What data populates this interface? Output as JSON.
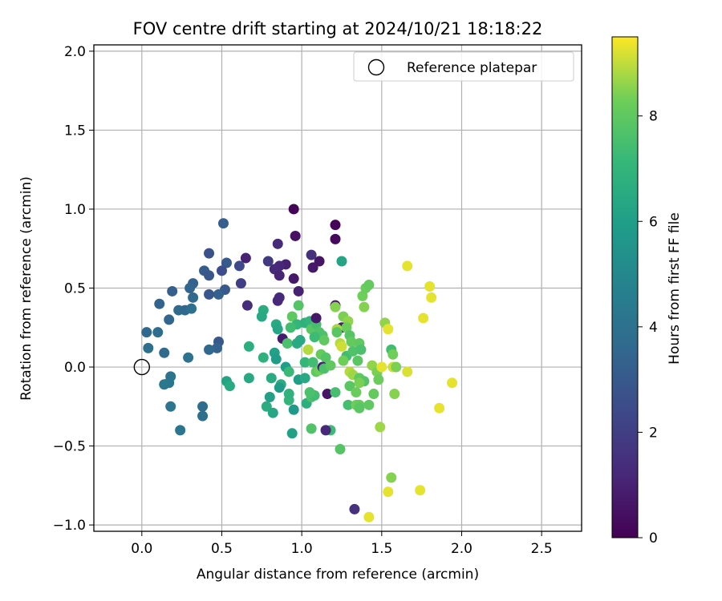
{
  "chart_data": {
    "type": "scatter",
    "title": "FOV centre drift starting at 2024/10/21 18:18:22",
    "xlabel": "Angular distance from reference (arcmin)",
    "ylabel": "Rotation from reference (arcmin)",
    "xlim": [
      -0.3,
      2.75
    ],
    "ylim": [
      -1.04,
      2.04
    ],
    "x_ticks": [
      0.0,
      0.5,
      1.0,
      1.5,
      2.0,
      2.5
    ],
    "x_tick_labels": [
      "0.0",
      "0.5",
      "1.0",
      "1.5",
      "2.0",
      "2.5"
    ],
    "y_ticks": [
      -1.0,
      -0.5,
      0.0,
      0.5,
      1.0,
      1.5,
      2.0
    ],
    "y_tick_labels": [
      "−1.0",
      "−0.5",
      "0.0",
      "0.5",
      "1.0",
      "1.5",
      "2.0"
    ],
    "grid": true,
    "legend": {
      "placement": "top-right",
      "entries": [
        "Reference platepar"
      ]
    },
    "reference_point": {
      "x": 0.0,
      "y": 0.0
    },
    "colorbar": {
      "label": "Hours from first FF file",
      "min": 0,
      "max": 9.5,
      "ticks": [
        0,
        2,
        4,
        6,
        8
      ],
      "tick_labels": [
        "0",
        "2",
        "4",
        "6",
        "8"
      ],
      "colormap": "viridis"
    },
    "points": [
      {
        "x": 0.95,
        "y": 1.0,
        "h": 0.1
      },
      {
        "x": 1.21,
        "y": 0.9,
        "h": 0.1
      },
      {
        "x": 1.21,
        "y": 0.81,
        "h": 0.2
      },
      {
        "x": 0.96,
        "y": 0.83,
        "h": 0.5
      },
      {
        "x": 1.11,
        "y": 0.67,
        "h": 0.6
      },
      {
        "x": 1.07,
        "y": 0.63,
        "h": 0.7
      },
      {
        "x": 0.9,
        "y": 0.65,
        "h": 1.0
      },
      {
        "x": 0.86,
        "y": 0.64,
        "h": 1.2
      },
      {
        "x": 0.83,
        "y": 0.62,
        "h": 1.3
      },
      {
        "x": 0.86,
        "y": 0.58,
        "h": 1.1
      },
      {
        "x": 0.95,
        "y": 0.56,
        "h": 0.7
      },
      {
        "x": 0.98,
        "y": 0.48,
        "h": 1.0
      },
      {
        "x": 0.65,
        "y": 0.69,
        "h": 1.0
      },
      {
        "x": 0.85,
        "y": 0.78,
        "h": 1.3
      },
      {
        "x": 0.79,
        "y": 0.67,
        "h": 1.8
      },
      {
        "x": 1.06,
        "y": 0.71,
        "h": 1.5
      },
      {
        "x": 0.86,
        "y": 0.44,
        "h": 1.3
      },
      {
        "x": 0.85,
        "y": 0.42,
        "h": 1.2
      },
      {
        "x": 0.66,
        "y": 0.39,
        "h": 1.4
      },
      {
        "x": 0.62,
        "y": 0.53,
        "h": 2.0
      },
      {
        "x": 0.61,
        "y": 0.64,
        "h": 2.4
      },
      {
        "x": 0.53,
        "y": 0.66,
        "h": 3.0
      },
      {
        "x": 0.5,
        "y": 0.61,
        "h": 2.5
      },
      {
        "x": 0.42,
        "y": 0.72,
        "h": 2.7
      },
      {
        "x": 0.39,
        "y": 0.61,
        "h": 3.1
      },
      {
        "x": 0.42,
        "y": 0.58,
        "h": 2.9
      },
      {
        "x": 0.51,
        "y": 0.91,
        "h": 3.2
      },
      {
        "x": 0.52,
        "y": 0.49,
        "h": 3.0
      },
      {
        "x": 0.48,
        "y": 0.46,
        "h": 3.3
      },
      {
        "x": 0.42,
        "y": 0.46,
        "h": 2.9
      },
      {
        "x": 0.32,
        "y": 0.53,
        "h": 3.3
      },
      {
        "x": 0.3,
        "y": 0.5,
        "h": 3.5
      },
      {
        "x": 0.32,
        "y": 0.44,
        "h": 3.7
      },
      {
        "x": 0.19,
        "y": 0.48,
        "h": 3.2
      },
      {
        "x": 0.11,
        "y": 0.4,
        "h": 3.4
      },
      {
        "x": 0.17,
        "y": 0.3,
        "h": 3.5
      },
      {
        "x": 0.23,
        "y": 0.36,
        "h": 3.7
      },
      {
        "x": 0.27,
        "y": 0.36,
        "h": 3.6
      },
      {
        "x": 0.31,
        "y": 0.37,
        "h": 3.9
      },
      {
        "x": 0.03,
        "y": 0.22,
        "h": 3.6
      },
      {
        "x": 0.1,
        "y": 0.22,
        "h": 3.8
      },
      {
        "x": 0.04,
        "y": 0.12,
        "h": 3.9
      },
      {
        "x": 0.48,
        "y": 0.16,
        "h": 2.9
      },
      {
        "x": 0.47,
        "y": 0.12,
        "h": 3.3
      },
      {
        "x": 0.42,
        "y": 0.11,
        "h": 3.6
      },
      {
        "x": 0.14,
        "y": 0.09,
        "h": 3.7
      },
      {
        "x": 0.29,
        "y": 0.06,
        "h": 4.0
      },
      {
        "x": 0.18,
        "y": -0.06,
        "h": 4.1
      },
      {
        "x": 0.17,
        "y": -0.1,
        "h": 4.2
      },
      {
        "x": 0.14,
        "y": -0.11,
        "h": 4.3
      },
      {
        "x": 0.18,
        "y": -0.25,
        "h": 4.2
      },
      {
        "x": 0.38,
        "y": -0.25,
        "h": 3.8
      },
      {
        "x": 0.38,
        "y": -0.31,
        "h": 3.9
      },
      {
        "x": 0.24,
        "y": -0.4,
        "h": 4.2
      },
      {
        "x": 1.25,
        "y": 0.67,
        "h": 6.2
      },
      {
        "x": 0.76,
        "y": 0.36,
        "h": 6.6
      },
      {
        "x": 0.75,
        "y": 0.32,
        "h": 6.4
      },
      {
        "x": 0.84,
        "y": 0.27,
        "h": 6.5
      },
      {
        "x": 0.85,
        "y": 0.24,
        "h": 6.3
      },
      {
        "x": 0.67,
        "y": 0.13,
        "h": 6.7
      },
      {
        "x": 0.83,
        "y": 0.09,
        "h": 6.1
      },
      {
        "x": 0.76,
        "y": 0.06,
        "h": 6.8
      },
      {
        "x": 0.84,
        "y": 0.05,
        "h": 5.9
      },
      {
        "x": 0.9,
        "y": 0.0,
        "h": 6.0
      },
      {
        "x": 0.92,
        "y": -0.03,
        "h": 7.2
      },
      {
        "x": 0.53,
        "y": -0.09,
        "h": 6.2
      },
      {
        "x": 0.55,
        "y": -0.12,
        "h": 6.5
      },
      {
        "x": 0.67,
        "y": -0.07,
        "h": 6.4
      },
      {
        "x": 0.81,
        "y": -0.07,
        "h": 6.5
      },
      {
        "x": 0.87,
        "y": -0.11,
        "h": 6.6
      },
      {
        "x": 0.86,
        "y": -0.13,
        "h": 5.8
      },
      {
        "x": 0.8,
        "y": -0.19,
        "h": 6.1
      },
      {
        "x": 0.92,
        "y": -0.21,
        "h": 7.0
      },
      {
        "x": 0.92,
        "y": -0.17,
        "h": 6.9
      },
      {
        "x": 0.78,
        "y": -0.25,
        "h": 6.6
      },
      {
        "x": 0.82,
        "y": -0.29,
        "h": 6.3
      },
      {
        "x": 0.95,
        "y": -0.27,
        "h": 5.8
      },
      {
        "x": 0.94,
        "y": -0.42,
        "h": 6.1
      },
      {
        "x": 0.98,
        "y": -0.08,
        "h": 6.0
      },
      {
        "x": 1.02,
        "y": -0.07,
        "h": 6.4
      },
      {
        "x": 1.03,
        "y": -0.23,
        "h": 6.7
      },
      {
        "x": 1.06,
        "y": -0.19,
        "h": 7.6
      },
      {
        "x": 1.08,
        "y": -0.18,
        "h": 7.4
      },
      {
        "x": 1.06,
        "y": -0.39,
        "h": 7.7
      },
      {
        "x": 1.18,
        "y": -0.4,
        "h": 7.3
      },
      {
        "x": 1.24,
        "y": -0.52,
        "h": 7.8
      },
      {
        "x": 1.15,
        "y": -0.4,
        "h": 1.2
      },
      {
        "x": 1.16,
        "y": -0.17,
        "h": 0.6
      },
      {
        "x": 1.21,
        "y": -0.16,
        "h": 7.5
      },
      {
        "x": 1.09,
        "y": -0.03,
        "h": 8.0
      },
      {
        "x": 1.11,
        "y": -0.02,
        "h": 8.3
      },
      {
        "x": 1.05,
        "y": -0.16,
        "h": 7.6
      },
      {
        "x": 0.98,
        "y": 0.39,
        "h": 7.8
      },
      {
        "x": 0.94,
        "y": 0.32,
        "h": 8.0
      },
      {
        "x": 0.97,
        "y": 0.27,
        "h": 7.1
      },
      {
        "x": 0.93,
        "y": 0.25,
        "h": 7.4
      },
      {
        "x": 0.88,
        "y": 0.18,
        "h": 0.8
      },
      {
        "x": 0.91,
        "y": 0.15,
        "h": 7.6
      },
      {
        "x": 0.97,
        "y": 0.15,
        "h": 6.5
      },
      {
        "x": 0.99,
        "y": 0.17,
        "h": 6.4
      },
      {
        "x": 1.02,
        "y": 0.28,
        "h": 6.8
      },
      {
        "x": 1.05,
        "y": 0.29,
        "h": 7.0
      },
      {
        "x": 1.06,
        "y": 0.24,
        "h": 7.9
      },
      {
        "x": 1.09,
        "y": 0.27,
        "h": 7.5
      },
      {
        "x": 1.09,
        "y": 0.31,
        "h": 0.7
      },
      {
        "x": 1.11,
        "y": 0.22,
        "h": 7.7
      },
      {
        "x": 1.13,
        "y": 0.2,
        "h": 7.6
      },
      {
        "x": 1.14,
        "y": 0.17,
        "h": 8.0
      },
      {
        "x": 1.08,
        "y": 0.19,
        "h": 7.3
      },
      {
        "x": 1.04,
        "y": 0.11,
        "h": 8.9
      },
      {
        "x": 1.02,
        "y": 0.03,
        "h": 7.1
      },
      {
        "x": 1.07,
        "y": 0.03,
        "h": 7.4
      },
      {
        "x": 1.12,
        "y": 0.08,
        "h": 8.1
      },
      {
        "x": 1.15,
        "y": 0.06,
        "h": 7.8
      },
      {
        "x": 1.13,
        "y": 0.0,
        "h": 0.9
      },
      {
        "x": 1.14,
        "y": -0.01,
        "h": 7.6
      },
      {
        "x": 1.18,
        "y": 0.01,
        "h": 8.0
      },
      {
        "x": 1.21,
        "y": 0.39,
        "h": 0.5
      },
      {
        "x": 1.21,
        "y": 0.38,
        "h": 8.5
      },
      {
        "x": 1.26,
        "y": 0.32,
        "h": 8.4
      },
      {
        "x": 1.29,
        "y": 0.29,
        "h": 8.6
      },
      {
        "x": 1.25,
        "y": 0.25,
        "h": 0.9
      },
      {
        "x": 1.28,
        "y": 0.25,
        "h": 8.2
      },
      {
        "x": 1.22,
        "y": 0.24,
        "h": 8.8
      },
      {
        "x": 1.22,
        "y": 0.22,
        "h": 7.9
      },
      {
        "x": 1.3,
        "y": 0.2,
        "h": 7.8
      },
      {
        "x": 1.31,
        "y": 0.16,
        "h": 8.1
      },
      {
        "x": 1.24,
        "y": 0.15,
        "h": 8.9
      },
      {
        "x": 1.25,
        "y": 0.13,
        "h": 9.1
      },
      {
        "x": 1.28,
        "y": 0.07,
        "h": 7.4
      },
      {
        "x": 1.26,
        "y": 0.04,
        "h": 8.3
      },
      {
        "x": 1.32,
        "y": 0.1,
        "h": 7.7
      },
      {
        "x": 1.36,
        "y": 0.15,
        "h": 8.0
      },
      {
        "x": 1.37,
        "y": 0.11,
        "h": 7.6
      },
      {
        "x": 1.35,
        "y": 0.04,
        "h": 7.9
      },
      {
        "x": 1.38,
        "y": 0.45,
        "h": 8.3
      },
      {
        "x": 1.39,
        "y": 0.38,
        "h": 8.5
      },
      {
        "x": 1.4,
        "y": 0.5,
        "h": 8.2
      },
      {
        "x": 1.42,
        "y": 0.52,
        "h": 8.1
      },
      {
        "x": 1.3,
        "y": -0.03,
        "h": 8.9
      },
      {
        "x": 1.32,
        "y": -0.05,
        "h": 8.7
      },
      {
        "x": 1.36,
        "y": -0.07,
        "h": 8.0
      },
      {
        "x": 1.39,
        "y": -0.09,
        "h": 7.8
      },
      {
        "x": 1.36,
        "y": -0.1,
        "h": 8.4
      },
      {
        "x": 1.3,
        "y": -0.12,
        "h": 7.9
      },
      {
        "x": 1.34,
        "y": -0.16,
        "h": 8.2
      },
      {
        "x": 1.29,
        "y": -0.24,
        "h": 7.5
      },
      {
        "x": 1.34,
        "y": -0.24,
        "h": 8.3
      },
      {
        "x": 1.36,
        "y": -0.24,
        "h": 8.1
      },
      {
        "x": 1.36,
        "y": -0.26,
        "h": 7.9
      },
      {
        "x": 1.42,
        "y": -0.24,
        "h": 8.0
      },
      {
        "x": 1.44,
        "y": 0.01,
        "h": 8.6
      },
      {
        "x": 1.47,
        "y": -0.03,
        "h": 8.4
      },
      {
        "x": 1.48,
        "y": -0.08,
        "h": 8.2
      },
      {
        "x": 1.45,
        "y": -0.17,
        "h": 8.1
      },
      {
        "x": 1.5,
        "y": 0.0,
        "h": 9.3
      },
      {
        "x": 1.52,
        "y": 0.28,
        "h": 8.6
      },
      {
        "x": 1.54,
        "y": 0.24,
        "h": 9.3
      },
      {
        "x": 1.56,
        "y": 0.11,
        "h": 7.4
      },
      {
        "x": 1.57,
        "y": 0.08,
        "h": 8.3
      },
      {
        "x": 1.57,
        "y": 0.0,
        "h": 9.1
      },
      {
        "x": 1.59,
        "y": 0.0,
        "h": 8.4
      },
      {
        "x": 1.58,
        "y": -0.17,
        "h": 8.5
      },
      {
        "x": 1.49,
        "y": -0.38,
        "h": 8.7
      },
      {
        "x": 1.56,
        "y": -0.7,
        "h": 8.5
      },
      {
        "x": 1.54,
        "y": -0.79,
        "h": 9.3
      },
      {
        "x": 1.42,
        "y": -0.95,
        "h": 9.3
      },
      {
        "x": 1.33,
        "y": -0.9,
        "h": 1.5
      },
      {
        "x": 1.66,
        "y": 0.64,
        "h": 9.3
      },
      {
        "x": 1.66,
        "y": -0.03,
        "h": 9.2
      },
      {
        "x": 1.74,
        "y": -0.78,
        "h": 9.3
      },
      {
        "x": 1.76,
        "y": 0.31,
        "h": 9.3
      },
      {
        "x": 1.8,
        "y": 0.51,
        "h": 9.3
      },
      {
        "x": 1.81,
        "y": 0.44,
        "h": 9.3
      },
      {
        "x": 1.86,
        "y": -0.26,
        "h": 9.3
      },
      {
        "x": 1.94,
        "y": -0.1,
        "h": 9.3
      }
    ]
  }
}
